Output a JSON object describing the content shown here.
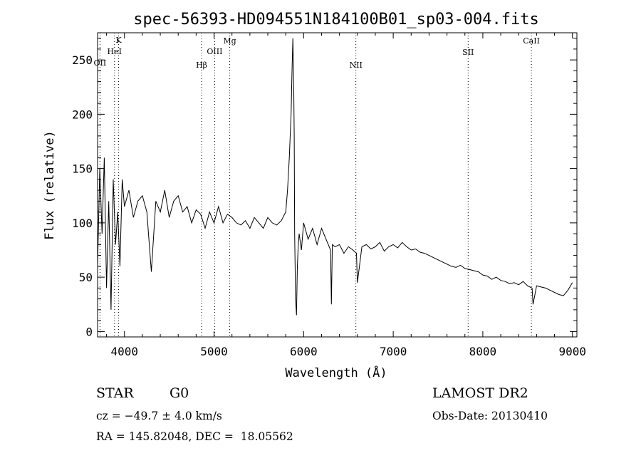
{
  "chart_data": {
    "type": "line",
    "title": "spec-56393-HD094551N184100B01_sp03-004.fits",
    "xlabel": "Wavelength (Å)",
    "ylabel": "Flux (relative)",
    "xlim": [
      3700,
      9050
    ],
    "ylim": [
      -5,
      275
    ],
    "xticks": [
      4000,
      5000,
      6000,
      7000,
      8000,
      9000
    ],
    "yticks": [
      0,
      50,
      100,
      150,
      200,
      250
    ],
    "grid": false,
    "line_color": "#000000",
    "lines": [
      {
        "label": "OII",
        "x": 3727
      },
      {
        "label": "K",
        "x": 3934
      },
      {
        "label": "HeI",
        "x": 3889
      },
      {
        "label": "Hβ",
        "x": 4861
      },
      {
        "label": "OIII",
        "x": 5007
      },
      {
        "label": "Mg",
        "x": 5175
      },
      {
        "label": "NII",
        "x": 6583
      },
      {
        "label": "SII",
        "x": 7836
      },
      {
        "label": "CaII",
        "x": 8542
      }
    ],
    "series": [
      {
        "x": [
          3700,
          3725,
          3750,
          3775,
          3800,
          3825,
          3850,
          3875,
          3900,
          3925,
          3950,
          3975,
          4000,
          4050,
          4100,
          4150,
          4200,
          4250,
          4300,
          4350,
          4400,
          4450,
          4500,
          4550,
          4600,
          4650,
          4700,
          4750,
          4800,
          4850,
          4900,
          4950,
          5000,
          5050,
          5100,
          5150,
          5200,
          5250,
          5300,
          5350,
          5400,
          5450,
          5500,
          5550,
          5600,
          5650,
          5700,
          5750,
          5800,
          5820,
          5840,
          5860,
          5870,
          5880,
          5890,
          5895,
          5900,
          5910,
          5920,
          5930,
          5940,
          5950,
          5975,
          6000,
          6050,
          6100,
          6150,
          6200,
          6250,
          6300,
          6310,
          6320,
          6350,
          6400,
          6450,
          6500,
          6550,
          6590,
          6600,
          6650,
          6700,
          6750,
          6800,
          6850,
          6900,
          6950,
          7000,
          7050,
          7100,
          7150,
          7200,
          7250,
          7300,
          7350,
          7400,
          7450,
          7500,
          7550,
          7600,
          7650,
          7700,
          7750,
          7800,
          7850,
          7900,
          7950,
          8000,
          8050,
          8100,
          8150,
          8200,
          8250,
          8300,
          8350,
          8400,
          8450,
          8500,
          8550,
          8560,
          8600,
          8650,
          8700,
          8750,
          8800,
          8850,
          8900,
          8950,
          9000
        ],
        "y": [
          60,
          150,
          90,
          160,
          40,
          120,
          20,
          140,
          80,
          110,
          60,
          140,
          115,
          130,
          105,
          120,
          125,
          110,
          55,
          120,
          110,
          130,
          105,
          120,
          125,
          110,
          115,
          100,
          112,
          108,
          95,
          110,
          100,
          115,
          100,
          108,
          105,
          100,
          98,
          102,
          95,
          105,
          100,
          95,
          105,
          100,
          98,
          102,
          110,
          130,
          160,
          200,
          240,
          270,
          220,
          180,
          90,
          30,
          15,
          60,
          80,
          90,
          75,
          100,
          85,
          95,
          80,
          95,
          85,
          75,
          25,
          80,
          78,
          80,
          72,
          78,
          75,
          72,
          45,
          78,
          80,
          76,
          78,
          82,
          74,
          78,
          80,
          77,
          82,
          78,
          75,
          76,
          73,
          72,
          70,
          68,
          66,
          64,
          62,
          60,
          59,
          61,
          58,
          57,
          56,
          55,
          52,
          51,
          48,
          50,
          47,
          46,
          44,
          45,
          43,
          46,
          42,
          40,
          25,
          42,
          41,
          40,
          38,
          36,
          34,
          33,
          38,
          45
        ]
      }
    ]
  },
  "info": {
    "star_label": "STAR",
    "subclass": "G0",
    "survey": "LAMOST DR2",
    "cz": "cz = −49.7 ± 4.0 km/s",
    "obs_date": "Obs-Date: 20130410",
    "radec": "RA = 145.82048, DEC =  18.05562"
  }
}
